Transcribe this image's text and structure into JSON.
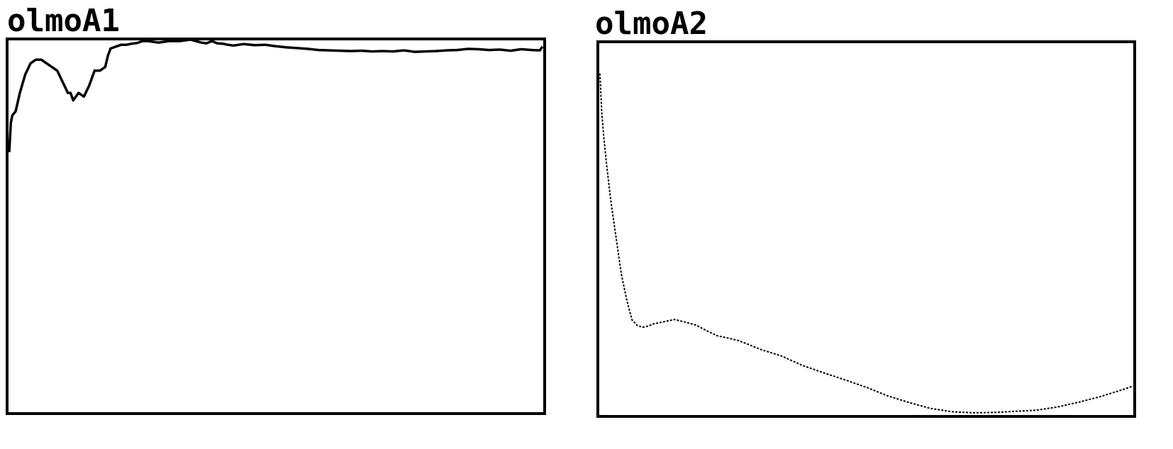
{
  "colors": {
    "line": "#000000",
    "frame": "#000000",
    "background": "#ffffff"
  },
  "chart_data": [
    {
      "type": "line",
      "title": "olmoA1",
      "xlabel": "",
      "ylabel": "",
      "grid": false,
      "xlim": [
        0,
        100
      ],
      "ylim": [
        0,
        100
      ],
      "series": [
        {
          "x": [
            0,
            0.3,
            0.6,
            1.2,
            2,
            3,
            4,
            5,
            6,
            7,
            8,
            9,
            10,
            11,
            11.5,
            12,
            13,
            14,
            15,
            16,
            17,
            18,
            18.5,
            19,
            20,
            21,
            22,
            23,
            24,
            25,
            26,
            28,
            30,
            32,
            34,
            36,
            37,
            38,
            39,
            40,
            41,
            42,
            44,
            46,
            48,
            50,
            52,
            54,
            56,
            58,
            60,
            62,
            64,
            66,
            68,
            70,
            72,
            74,
            76,
            78,
            80,
            82,
            84,
            86,
            88,
            90,
            92,
            94,
            96,
            98,
            99.5,
            100
          ],
          "values": [
            70,
            78,
            80,
            81,
            86,
            91,
            94,
            95,
            95,
            94,
            93,
            92,
            89,
            86,
            86,
            84,
            86,
            85,
            88,
            92,
            92,
            93,
            96,
            98,
            98.5,
            99,
            99,
            99.3,
            99.5,
            100,
            100,
            99.6,
            100,
            100,
            100.4,
            99.6,
            99.4,
            100,
            99.4,
            99.3,
            99,
            98.8,
            99.2,
            98.9,
            99,
            98.6,
            98.3,
            98.1,
            97.9,
            97.6,
            97.5,
            97.4,
            97.3,
            97.4,
            97.2,
            97.3,
            97.2,
            97.5,
            97.1,
            97.2,
            97.3,
            97.5,
            97.6,
            97.9,
            97.8,
            97.6,
            97.7,
            97.4,
            97.8,
            97.6,
            97.5,
            98.5
          ]
        }
      ]
    },
    {
      "type": "line",
      "title": "olmoA2",
      "xlabel": "",
      "ylabel": "",
      "grid": false,
      "xlim": [
        0,
        100
      ],
      "ylim": [
        0,
        100
      ],
      "series": [
        {
          "x": [
            0,
            0.3,
            0.7,
            1.2,
            2,
            3,
            4,
            5,
            6,
            7,
            8,
            9,
            10,
            12,
            14,
            16,
            18,
            20,
            22,
            24,
            26,
            28,
            30,
            34,
            38,
            42,
            46,
            50,
            54,
            58,
            62,
            66,
            70,
            74,
            78,
            82,
            86,
            90,
            94,
            98,
            100
          ],
          "values": [
            92,
            82,
            75,
            68,
            58,
            48,
            38,
            31,
            25.5,
            24,
            23.5,
            23.8,
            24.4,
            25,
            25.6,
            24.9,
            24.1,
            22.6,
            21.2,
            20.6,
            19.9,
            18.8,
            17.6,
            15.8,
            13.2,
            11.2,
            9.3,
            7.3,
            5,
            3.2,
            1.6,
            0.7,
            0.4,
            0.5,
            0.8,
            1.1,
            2,
            3.3,
            4.8,
            6.6,
            7.6
          ]
        }
      ]
    }
  ]
}
